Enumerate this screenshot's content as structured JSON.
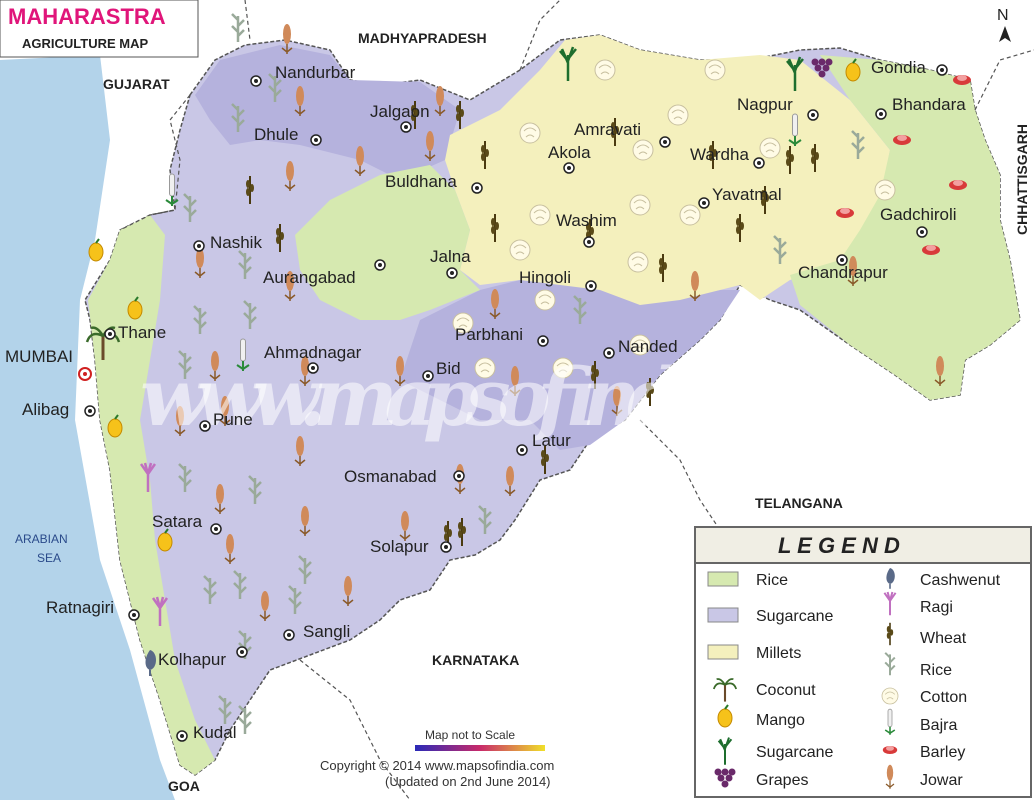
{
  "title": {
    "line1": "MAHARASTRA",
    "line2": "AGRICULTURE MAP"
  },
  "north": "N",
  "neighbors": {
    "gujarat": "GUJARAT",
    "madhyapradesh": "MADHYAPRADESH",
    "chhattisgarh": "CHHATTISGARH",
    "telangana": "TELANGANA",
    "karnataka": "KARNATAKA",
    "goa": "GOA",
    "sea": [
      "ARABIAN",
      "SEA"
    ]
  },
  "cities": {
    "nandurbar": "Nandurbar",
    "dhule": "Dhule",
    "jalgaon": "Jalgaon",
    "buldhana": "Buldhana",
    "akola": "Akola",
    "amravati": "Amravati",
    "nagpur": "Nagpur",
    "gondia": "Gondia",
    "bhandara": "Bhandara",
    "wardha": "Wardha",
    "yavatmal": "Yavatmal",
    "washim": "Washim",
    "gadchiroli": "Gadchiroli",
    "chandrapur": "Chandrapur",
    "nashik": "Nashik",
    "aurangabad": "Aurangabad",
    "jalna": "Jalna",
    "hingoli": "Hingoli",
    "parbhani": "Parbhani",
    "nanded": "Nanded",
    "thane": "Thane",
    "mumbai": "MUMBAI",
    "alibag": "Alibag",
    "ahmadnagar": "Ahmadnagar",
    "bid": "Bid",
    "pune": "Pune",
    "latur": "Latur",
    "osmanabad": "Osmanabad",
    "satara": "Satara",
    "solapur": "Solapur",
    "ratnagiri": "Ratnagiri",
    "sangli": "Sangli",
    "kolhapur": "Kolhapur",
    "kudal": "Kudal"
  },
  "legend": {
    "heading": "L E G E N D",
    "items": [
      {
        "label": "Rice",
        "icon": "rice-area-swatch",
        "color": "#d6e9b0"
      },
      {
        "label": "Sugarcane",
        "icon": "sugarcane-area-swatch",
        "color": "#c9c7e6"
      },
      {
        "label": "Millets",
        "icon": "millets-area-swatch",
        "color": "#f4f0bd"
      },
      {
        "label": "Coconut",
        "icon": "coconut-icon"
      },
      {
        "label": "Mango",
        "icon": "mango-icon"
      },
      {
        "label": "Sugarcane",
        "icon": "sugarcane-icon"
      },
      {
        "label": "Grapes",
        "icon": "grapes-icon"
      },
      {
        "label": "Cashwenut",
        "icon": "cashewnut-icon"
      },
      {
        "label": "Ragi",
        "icon": "ragi-icon"
      },
      {
        "label": "Wheat",
        "icon": "wheat-icon"
      },
      {
        "label": "Rice",
        "icon": "rice-plant-icon"
      },
      {
        "label": "Cotton",
        "icon": "cotton-icon"
      },
      {
        "label": "Bajra",
        "icon": "bajra-icon"
      },
      {
        "label": "Barley",
        "icon": "barley-icon"
      },
      {
        "label": "Jowar",
        "icon": "jowar-icon"
      }
    ]
  },
  "scale_note": "Map not to Scale",
  "copyright": {
    "line1": "Copyright © 2014 www.mapsofindia.com",
    "line2": "(Updated on 2nd June 2014)"
  },
  "watermark": "www.mapsofindia.com",
  "colors": {
    "rice": "#d6e9b0",
    "sugarcane": "#c9c7e6",
    "millets": "#f4f0bd",
    "sea": "#b3d3ea"
  }
}
